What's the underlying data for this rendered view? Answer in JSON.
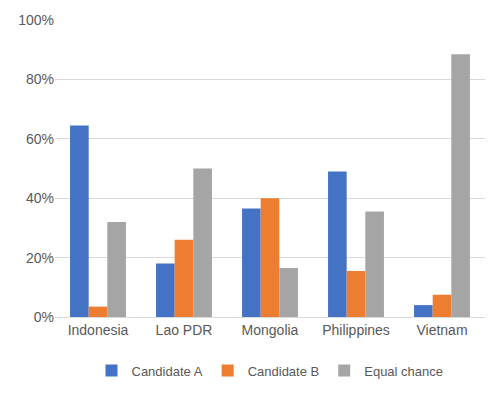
{
  "chart_data": {
    "type": "bar",
    "categories": [
      "Indonesia",
      "Lao PDR",
      "Mongolia",
      "Philippines",
      "Vietnam"
    ],
    "series": [
      {
        "name": "Candidate A",
        "color": "#4472c4",
        "values": [
          64.5,
          18,
          36.5,
          49,
          4
        ]
      },
      {
        "name": "Candidate B",
        "color": "#ed7d31",
        "values": [
          3.5,
          26,
          40,
          15.5,
          7.5
        ]
      },
      {
        "name": "Equal chance",
        "color": "#a5a5a5",
        "values": [
          32,
          50,
          16.5,
          35.5,
          88.5
        ]
      }
    ],
    "ylim": [
      0,
      100
    ],
    "yticks": [
      {
        "value": 0,
        "label": "0%"
      },
      {
        "value": 20,
        "label": "20%"
      },
      {
        "value": 40,
        "label": "40%"
      },
      {
        "value": 60,
        "label": "60%"
      },
      {
        "value": 80,
        "label": "80%"
      },
      {
        "value": 100,
        "label": "100%"
      }
    ],
    "grid": true,
    "legend": "bottom"
  }
}
